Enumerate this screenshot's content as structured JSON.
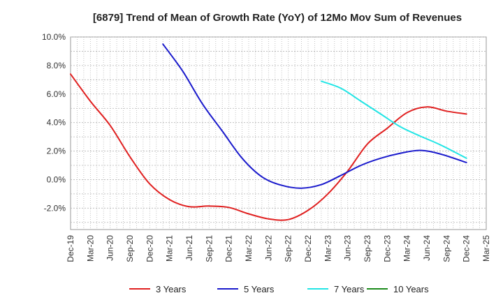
{
  "chart_data": {
    "type": "line",
    "title": "[6879]  Trend of Mean of Growth Rate (YoY) of 12Mo Mov Sum of Revenues",
    "xlabel": "",
    "ylabel": "",
    "ylim": [
      -3.5,
      10.0
    ],
    "yticks": [
      10.0,
      8.0,
      6.0,
      4.0,
      2.0,
      0.0,
      -2.0
    ],
    "ytick_labels": [
      "10.0%",
      "8.0%",
      "6.0%",
      "4.0%",
      "2.0%",
      "0.0%",
      "-2.0%"
    ],
    "x_range": [
      0,
      63
    ],
    "xtick_labels": [
      "Dec-19",
      "Mar-20",
      "Jun-20",
      "Sep-20",
      "Dec-20",
      "Mar-21",
      "Jun-21",
      "Sep-21",
      "Dec-21",
      "Mar-22",
      "Jun-22",
      "Sep-22",
      "Dec-22",
      "Mar-23",
      "Jun-23",
      "Sep-23",
      "Dec-23",
      "Mar-24",
      "Jun-24",
      "Sep-24",
      "Dec-24",
      "Mar-25"
    ],
    "grid": true,
    "legend_position": "bottom",
    "series": [
      {
        "name": "3 Years",
        "color": "#e02020",
        "points": [
          [
            0,
            7.4
          ],
          [
            3,
            5.5
          ],
          [
            6,
            3.8
          ],
          [
            9,
            1.6
          ],
          [
            12,
            -0.3
          ],
          [
            15,
            -1.4
          ],
          [
            18,
            -1.9
          ],
          [
            21,
            -1.85
          ],
          [
            24,
            -1.95
          ],
          [
            27,
            -2.4
          ],
          [
            30,
            -2.75
          ],
          [
            33,
            -2.8
          ],
          [
            36,
            -2.15
          ],
          [
            39,
            -1.0
          ],
          [
            42,
            0.6
          ],
          [
            45,
            2.5
          ],
          [
            48,
            3.6
          ],
          [
            51,
            4.7
          ],
          [
            54,
            5.1
          ],
          [
            57,
            4.8
          ],
          [
            60,
            4.6
          ]
        ]
      },
      {
        "name": "5 Years",
        "color": "#1a1acc",
        "points": [
          [
            14,
            9.5
          ],
          [
            17,
            7.6
          ],
          [
            20,
            5.3
          ],
          [
            23,
            3.4
          ],
          [
            26,
            1.5
          ],
          [
            29,
            0.2
          ],
          [
            32,
            -0.4
          ],
          [
            35,
            -0.6
          ],
          [
            38,
            -0.35
          ],
          [
            41,
            0.3
          ],
          [
            44,
            1.0
          ],
          [
            47,
            1.5
          ],
          [
            50,
            1.85
          ],
          [
            53,
            2.05
          ],
          [
            56,
            1.8
          ],
          [
            60,
            1.2
          ]
        ]
      },
      {
        "name": "7 Years",
        "color": "#22e5e5",
        "points": [
          [
            38,
            6.9
          ],
          [
            41,
            6.4
          ],
          [
            44,
            5.5
          ],
          [
            47,
            4.6
          ],
          [
            50,
            3.7
          ],
          [
            53,
            3.05
          ],
          [
            56,
            2.45
          ],
          [
            60,
            1.5
          ]
        ]
      },
      {
        "name": "10 Years",
        "color": "#1a8a1a",
        "points": []
      }
    ]
  }
}
